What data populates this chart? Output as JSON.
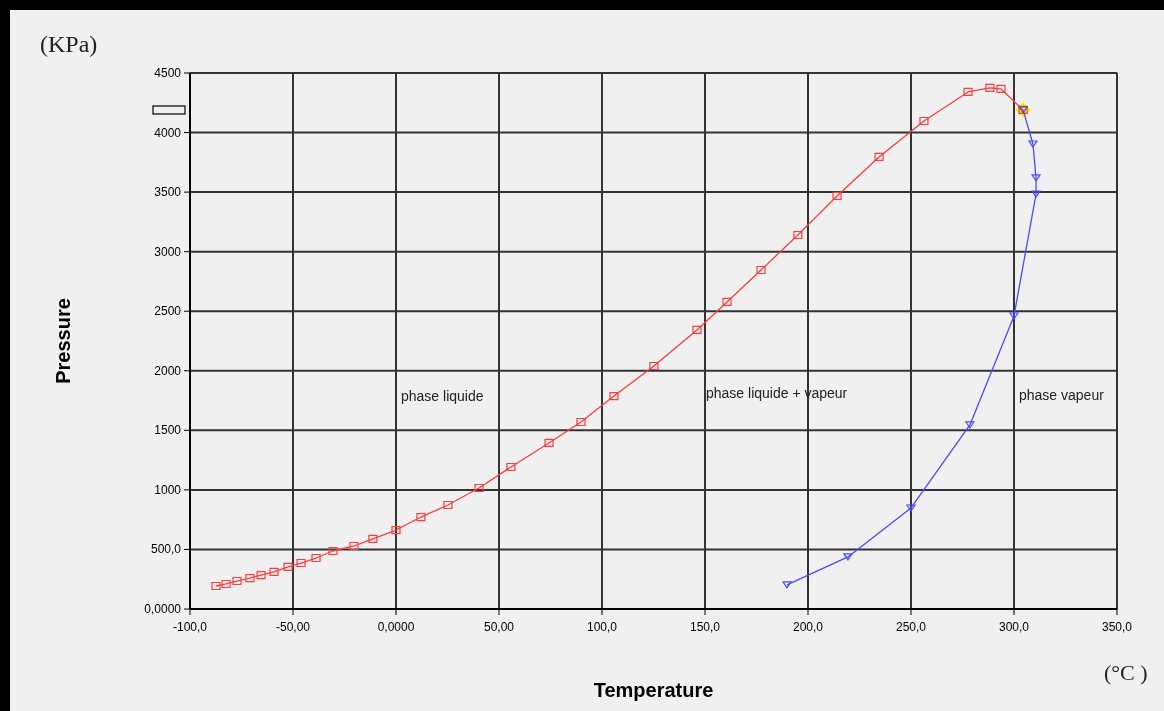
{
  "chart_data": {
    "type": "line",
    "xlabel": "Temperature",
    "ylabel": "Pressure",
    "annotations": [
      "(KPa)",
      "(°C )",
      "phase liquide",
      "phase liquide + vapeur",
      "phase vapeur"
    ],
    "xlim": [
      -100,
      350
    ],
    "xticks": [
      {
        "value": -100,
        "label": "-100,0"
      },
      {
        "value": -50,
        "label": "-50,00"
      },
      {
        "value": 0,
        "label": "0,0000"
      },
      {
        "value": 50,
        "label": "50,00"
      },
      {
        "value": 100,
        "label": "100,0"
      },
      {
        "value": 150,
        "label": "150,0"
      },
      {
        "value": 200,
        "label": "200,0"
      },
      {
        "value": 250,
        "label": "250,0"
      },
      {
        "value": 300,
        "label": "300,0"
      },
      {
        "value": 350,
        "label": "350,0"
      }
    ],
    "ylim": [
      0,
      4500
    ],
    "yticks": [
      {
        "value": 0,
        "label": "0,0000"
      },
      {
        "value": 500,
        "label": "500,0"
      },
      1000,
      1500,
      2000,
      2500,
      3000,
      3500,
      4000,
      4500
    ],
    "grid": true,
    "series": [
      {
        "color": "#ff3b3b",
        "marker": "square",
        "x": [
          -87.4,
          -82.5,
          -77.2,
          -70.9,
          -65.5,
          -59.2,
          -52.4,
          -46.1,
          -38.8,
          -30.6,
          -20.4,
          -11.2,
          0,
          12.1,
          25.2,
          40.3,
          55.8,
          74.3,
          89.8,
          105.8,
          125.2,
          146.1,
          160.7,
          177.2,
          195.1,
          214.1,
          234.5,
          256.3,
          277.7,
          288.3,
          293.7,
          304.4
        ],
        "values": [
          193,
          210,
          235,
          260,
          285,
          311,
          353,
          386,
          428,
          487,
          529,
          588,
          663,
          772,
          873,
          1016,
          1192,
          1394,
          1570,
          1788,
          2040,
          2343,
          2578,
          2846,
          3140,
          3468,
          3795,
          4097,
          4341,
          4375,
          4366,
          4190
        ]
      },
      {
        "color": "#4a4aff",
        "marker": "triangle",
        "x": [
          304.4,
          309.2,
          310.7,
          310.7,
          300,
          278.6,
          250,
          219.4,
          189.8
        ],
        "values": [
          4190,
          3904,
          3619,
          3484,
          2460,
          1545,
          848,
          437,
          202
        ]
      },
      {
        "type": "scatter",
        "color": "#ffee00",
        "marker": "diamond",
        "x": [
          304.4
        ],
        "values": [
          4190
        ]
      }
    ]
  }
}
